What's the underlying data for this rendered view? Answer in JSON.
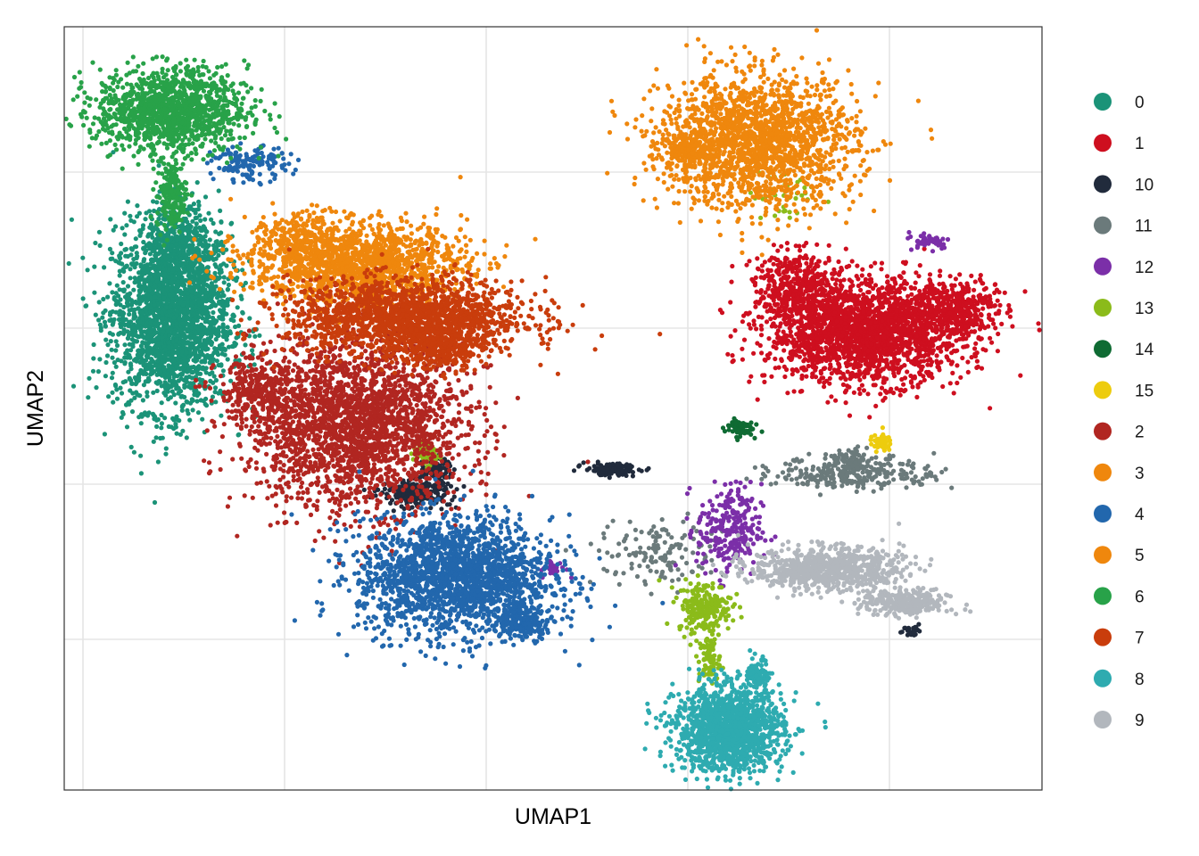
{
  "chart_data": {
    "type": "scatter",
    "title": "",
    "xlabel": "UMAP1",
    "ylabel": "UMAP2",
    "xlim": [
      0,
      100
    ],
    "ylim": [
      0,
      100
    ],
    "x_tick_labels_shown": false,
    "y_tick_labels_shown": false,
    "grid": true,
    "legend_position": "right",
    "clusters": [
      {
        "name": "0",
        "color": "#1B9378",
        "blobs": [
          [
            11,
            62,
            5.5,
            11,
            2400
          ],
          [
            12,
            72,
            3,
            5,
            300
          ]
        ]
      },
      {
        "name": "1",
        "color": "#CE0F1F",
        "blobs": [
          [
            82,
            60,
            9,
            6,
            2200
          ],
          [
            75,
            66,
            4,
            4,
            400
          ],
          [
            91,
            63,
            4,
            3.5,
            400
          ]
        ]
      },
      {
        "name": "10",
        "color": "#212B3C",
        "blobs": [
          [
            36,
            39,
            3.2,
            1.6,
            260
          ],
          [
            56,
            42,
            2.5,
            0.7,
            140
          ],
          [
            38,
            42,
            1.4,
            1.4,
            80
          ],
          [
            86.5,
            21,
            0.8,
            0.6,
            25
          ]
        ]
      },
      {
        "name": "11",
        "color": "#6B7A7B",
        "blobs": [
          [
            81,
            41.5,
            7.5,
            2,
            260
          ],
          [
            61,
            31,
            6,
            4,
            140
          ],
          [
            80.5,
            43,
            2,
            1.5,
            80
          ]
        ]
      },
      {
        "name": "12",
        "color": "#7B2FA8",
        "blobs": [
          [
            68,
            34,
            3,
            5.5,
            260
          ],
          [
            88.5,
            72,
            2,
            1,
            50
          ],
          [
            50,
            29,
            1.2,
            1,
            30
          ]
        ]
      },
      {
        "name": "13",
        "color": "#8BBB1A",
        "blobs": [
          [
            65.5,
            24,
            2.5,
            3,
            220
          ],
          [
            66,
            17,
            1,
            3,
            80
          ],
          [
            37,
            44,
            1.3,
            1.3,
            50
          ],
          [
            73.5,
            78,
            3,
            4,
            40
          ]
        ]
      },
      {
        "name": "14",
        "color": "#0F6B33",
        "blobs": [
          [
            69,
            47.5,
            1.3,
            1,
            70
          ]
        ]
      },
      {
        "name": "15",
        "color": "#EDCC0E",
        "blobs": [
          [
            83.5,
            45.5,
            1,
            1,
            55
          ]
        ]
      },
      {
        "name": "2",
        "color": "#B12621",
        "blobs": [
          [
            30,
            48,
            10,
            10,
            2400
          ],
          [
            20,
            52,
            4,
            4,
            300
          ]
        ]
      },
      {
        "name": "3",
        "color": "#EF870D",
        "blobs": [
          [
            30,
            69,
            10,
            4.8,
            1500
          ],
          [
            24,
            72,
            4,
            3.5,
            200
          ]
        ]
      },
      {
        "name": "4",
        "color": "#2267AD",
        "blobs": [
          [
            40,
            28,
            9,
            7,
            2000
          ],
          [
            19,
            82,
            3.5,
            2,
            140
          ],
          [
            47,
            22,
            3,
            2,
            200
          ]
        ]
      },
      {
        "name": "5",
        "color": "#EF870D",
        "blobs": [
          [
            71,
            85,
            9,
            8,
            1800
          ],
          [
            64,
            84,
            3,
            3,
            200
          ]
        ]
      },
      {
        "name": "6",
        "color": "#28A249",
        "blobs": [
          [
            11,
            89,
            7,
            5,
            1300
          ],
          [
            11,
            78,
            1.4,
            4,
            180
          ]
        ]
      },
      {
        "name": "7",
        "color": "#C93D0C",
        "blobs": [
          [
            35,
            62,
            11,
            4.5,
            1700
          ],
          [
            38.5,
            58,
            4,
            2.5,
            300
          ]
        ]
      },
      {
        "name": "8",
        "color": "#2EABB0",
        "blobs": [
          [
            68,
            8,
            5,
            5,
            1500
          ],
          [
            71,
            15,
            1,
            2,
            100
          ]
        ]
      },
      {
        "name": "9",
        "color": "#B2B7BD",
        "blobs": [
          [
            78,
            29,
            7,
            2.5,
            800
          ],
          [
            86,
            24.5,
            4,
            1.5,
            300
          ]
        ]
      }
    ]
  },
  "legend": {
    "items": [
      {
        "label": "0",
        "color": "#1B9378"
      },
      {
        "label": "1",
        "color": "#CE0F1F"
      },
      {
        "label": "10",
        "color": "#212B3C"
      },
      {
        "label": "11",
        "color": "#6B7A7B"
      },
      {
        "label": "12",
        "color": "#7B2FA8"
      },
      {
        "label": "13",
        "color": "#8BBB1A"
      },
      {
        "label": "14",
        "color": "#0F6B33"
      },
      {
        "label": "15",
        "color": "#EDCC0E"
      },
      {
        "label": "2",
        "color": "#B12621"
      },
      {
        "label": "3",
        "color": "#EF870D"
      },
      {
        "label": "4",
        "color": "#2267AD"
      },
      {
        "label": "5",
        "color": "#EF870D"
      },
      {
        "label": "6",
        "color": "#28A249"
      },
      {
        "label": "7",
        "color": "#C93D0C"
      },
      {
        "label": "8",
        "color": "#2EABB0"
      },
      {
        "label": "9",
        "color": "#B2B7BD"
      }
    ]
  },
  "colors": {
    "background": "#FFFFFF",
    "grid": "#E5E5E5",
    "panel_border": "#333333"
  }
}
